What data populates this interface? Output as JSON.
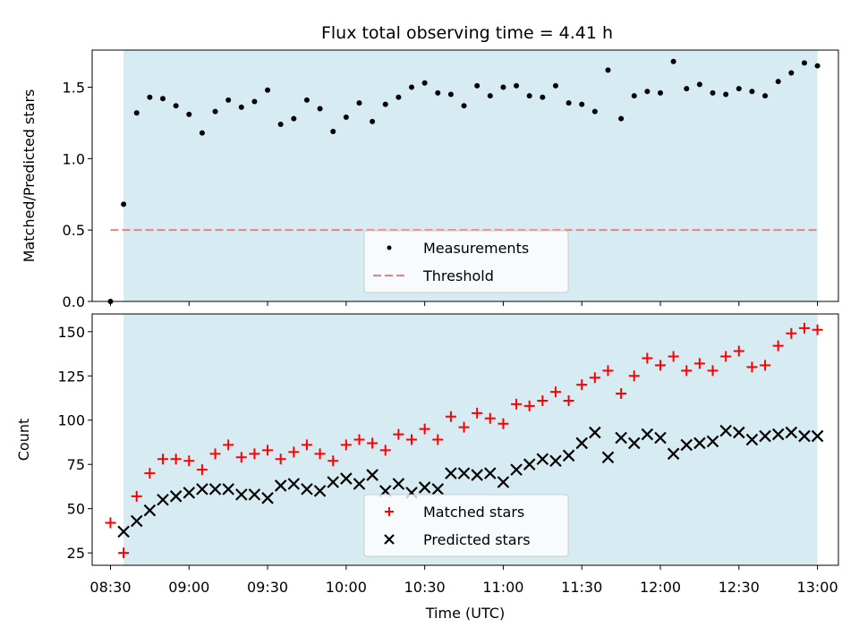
{
  "title": "Flux total observing time = 4.41 h",
  "colors": {
    "shade": "#add8e6",
    "measurement": "#000000",
    "threshold": "#f08080",
    "matched": "#ff0000",
    "predicted": "#000000"
  },
  "chart_data": [
    {
      "type": "scatter",
      "ylabel": "Matched/Predicted stars",
      "ylim": [
        0,
        1.76
      ],
      "yticks": [
        "0.0",
        "0.5",
        "1.0",
        "1.5"
      ],
      "xlim": [
        503,
        788
      ],
      "legend": {
        "placement": "lower center",
        "entries": [
          "Measurements",
          "Threshold"
        ]
      },
      "shaded_span": [
        "08:35",
        "13:00"
      ],
      "threshold": 0.5,
      "series": [
        {
          "name": "Measurements",
          "x": [
            510,
            515,
            520,
            525,
            530,
            535,
            540,
            545,
            550,
            555,
            560,
            565,
            570,
            575,
            580,
            585,
            590,
            595,
            600,
            605,
            610,
            615,
            620,
            625,
            630,
            635,
            640,
            645,
            650,
            655,
            660,
            665,
            670,
            675,
            680,
            685,
            690,
            695,
            700,
            705,
            710,
            715,
            720,
            725,
            730,
            735,
            740,
            745,
            750,
            755,
            760,
            765,
            770,
            775,
            780
          ],
          "values": [
            0.0,
            0.68,
            1.32,
            1.43,
            1.42,
            1.37,
            1.31,
            1.18,
            1.33,
            1.41,
            1.36,
            1.4,
            1.48,
            1.24,
            1.28,
            1.41,
            1.35,
            1.19,
            1.29,
            1.39,
            1.26,
            1.38,
            1.43,
            1.5,
            1.53,
            1.46,
            1.45,
            1.37,
            1.51,
            1.44,
            1.5,
            1.51,
            1.44,
            1.43,
            1.51,
            1.39,
            1.38,
            1.33,
            1.62,
            1.28,
            1.44,
            1.47,
            1.46,
            1.68,
            1.49,
            1.52,
            1.46,
            1.45,
            1.49,
            1.47,
            1.44,
            1.54,
            1.6,
            1.67,
            1.65
          ]
        }
      ]
    },
    {
      "type": "scatter",
      "xlabel": "Time (UTC)",
      "ylabel": "Count",
      "ylim": [
        18,
        160
      ],
      "yticks": [
        "25",
        "50",
        "75",
        "100",
        "125",
        "150"
      ],
      "xlim": [
        503,
        788
      ],
      "xticks": [
        "08:30",
        "09:00",
        "09:30",
        "10:00",
        "10:30",
        "11:00",
        "11:30",
        "12:00",
        "12:30",
        "13:00"
      ],
      "legend": {
        "placement": "lower center",
        "entries": [
          "Matched stars",
          "Predicted stars"
        ]
      },
      "shaded_span": [
        "08:35",
        "13:00"
      ],
      "series": [
        {
          "name": "Matched stars",
          "x": [
            510,
            515,
            520,
            525,
            530,
            535,
            540,
            545,
            550,
            555,
            560,
            565,
            570,
            575,
            580,
            585,
            590,
            595,
            600,
            605,
            610,
            615,
            620,
            625,
            630,
            635,
            640,
            645,
            650,
            655,
            660,
            665,
            670,
            675,
            680,
            685,
            690,
            695,
            700,
            705,
            710,
            715,
            720,
            725,
            730,
            735,
            740,
            745,
            750,
            755,
            760,
            765,
            770,
            775,
            780
          ],
          "values": [
            42,
            25,
            57,
            70,
            78,
            78,
            77,
            72,
            81,
            86,
            79,
            81,
            83,
            78,
            82,
            86,
            81,
            77,
            86,
            89,
            87,
            83,
            92,
            89,
            95,
            89,
            102,
            96,
            104,
            101,
            98,
            109,
            108,
            111,
            116,
            111,
            120,
            124,
            128,
            115,
            125,
            135,
            131,
            136,
            128,
            132,
            128,
            136,
            139,
            130,
            131,
            142,
            149,
            152,
            151
          ]
        },
        {
          "name": "Predicted stars",
          "x": [
            515,
            520,
            525,
            530,
            535,
            540,
            545,
            550,
            555,
            560,
            565,
            570,
            575,
            580,
            585,
            590,
            595,
            600,
            605,
            610,
            615,
            620,
            625,
            630,
            635,
            640,
            645,
            650,
            655,
            660,
            665,
            670,
            675,
            680,
            685,
            690,
            695,
            700,
            705,
            710,
            715,
            720,
            725,
            730,
            735,
            740,
            745,
            750,
            755,
            760,
            765,
            770,
            775,
            780
          ],
          "values": [
            37,
            43,
            49,
            55,
            57,
            59,
            61,
            61,
            61,
            58,
            58,
            56,
            63,
            64,
            61,
            60,
            65,
            67,
            64,
            69,
            60,
            64,
            59,
            62,
            61,
            70,
            70,
            69,
            70,
            65,
            72,
            75,
            78,
            77,
            80,
            87,
            93,
            79,
            90,
            87,
            92,
            90,
            81,
            86,
            87,
            88,
            94,
            93,
            89,
            91,
            92,
            93,
            91,
            91
          ]
        }
      ]
    }
  ]
}
